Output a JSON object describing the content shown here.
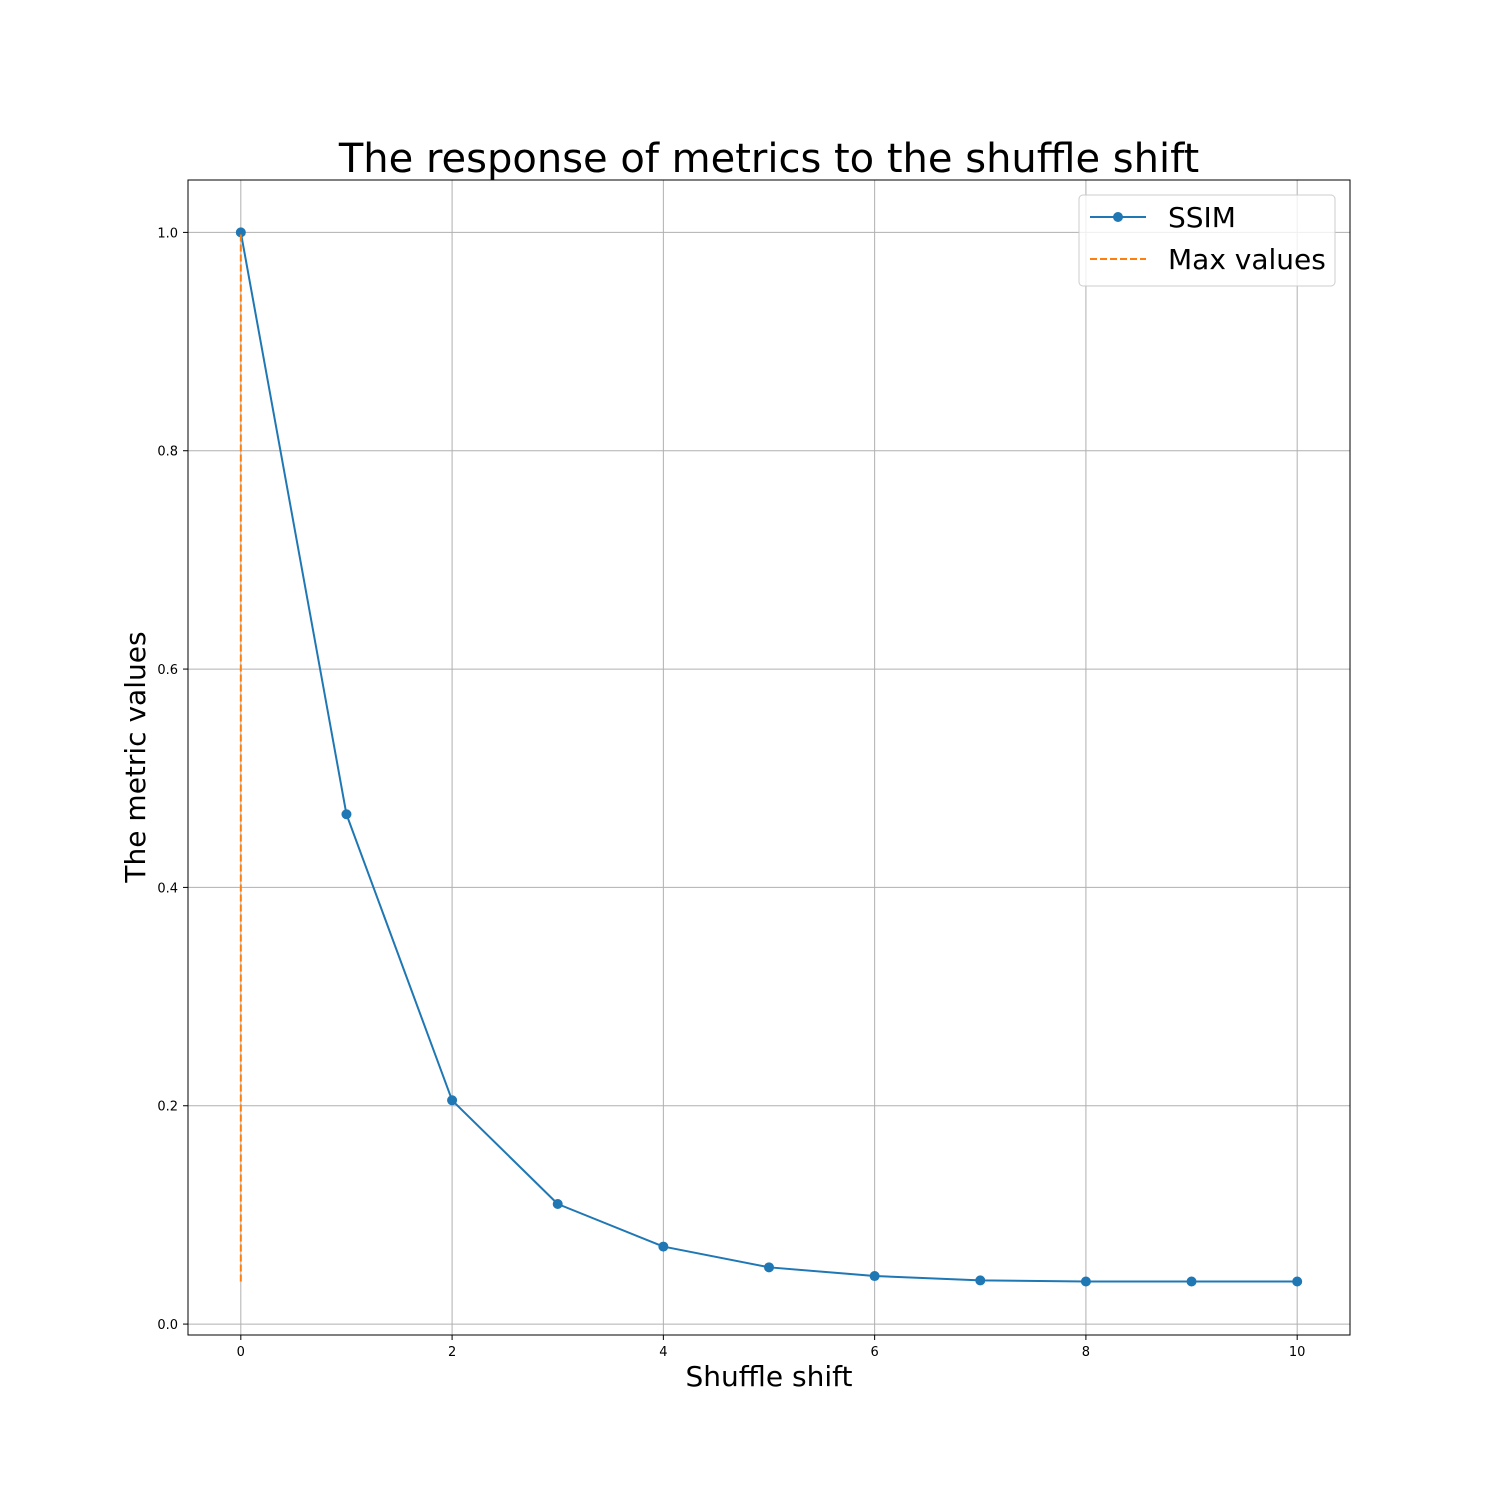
{
  "chart_data": {
    "type": "line",
    "title": "The response of metrics to the shuffle shift",
    "xlabel": "Shuffle shift",
    "ylabel": "The metric values",
    "xlim": [
      -0.5,
      10.5
    ],
    "ylim": [
      -0.01,
      1.048
    ],
    "xticks": [
      0,
      2,
      4,
      6,
      8,
      10
    ],
    "xtick_labels": [
      "0",
      "2",
      "4",
      "6",
      "8",
      "10"
    ],
    "yticks": [
      0.0,
      0.2,
      0.4,
      0.6,
      0.8,
      1.0
    ],
    "ytick_labels": [
      "0.0",
      "0.2",
      "0.4",
      "0.6",
      "0.8",
      "1.0"
    ],
    "grid": true,
    "legend_position": "upper right",
    "series": [
      {
        "name": "SSIM",
        "style": "solid-marker",
        "color": "#1f77b4",
        "x": [
          0,
          1,
          2,
          3,
          4,
          5,
          6,
          7,
          8,
          9,
          10
        ],
        "values": [
          1.0,
          0.467,
          0.205,
          0.11,
          0.071,
          0.052,
          0.044,
          0.04,
          0.039,
          0.039,
          0.039
        ]
      },
      {
        "name": "Max values",
        "style": "dashed",
        "color": "#ff7f0e",
        "x": [
          0,
          0
        ],
        "values": [
          0.039,
          1.0
        ]
      }
    ]
  }
}
